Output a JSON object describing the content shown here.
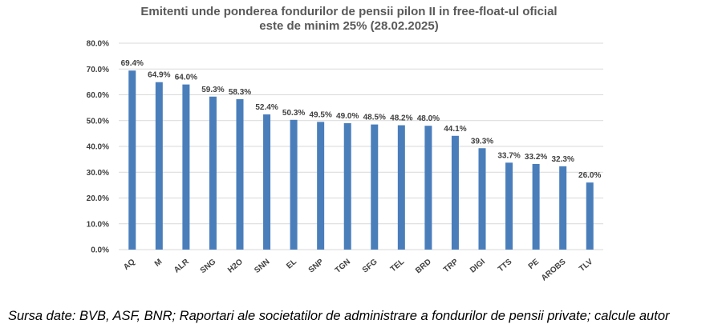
{
  "chart_data": {
    "type": "bar",
    "title_lines": [
      "Emitenti  unde ponderea fondurilor de pensii pilon II in free-float-ul  oficial",
      "este de minim 25% (28.02.2025)"
    ],
    "categories": [
      "AQ",
      "M",
      "ALR",
      "SNG",
      "H2O",
      "SNN",
      "EL",
      "SNP",
      "TGN",
      "SFG",
      "TEL",
      "BRD",
      "TRP",
      "DIGI",
      "TTS",
      "PE",
      "AROBS",
      "TLV"
    ],
    "values": [
      69.4,
      64.9,
      64.0,
      59.3,
      58.3,
      52.4,
      50.3,
      49.5,
      49.0,
      48.5,
      48.2,
      48.0,
      44.1,
      39.3,
      33.7,
      33.2,
      32.3,
      26.0
    ],
    "value_labels": [
      "69.4%",
      "64.9%",
      "64.0%",
      "59.3%",
      "58.3%",
      "52.4%",
      "50.3%",
      "49.5%",
      "49.0%",
      "48.5%",
      "48.2%",
      "48.0%",
      "44.1%",
      "39.3%",
      "33.7%",
      "33.2%",
      "32.3%",
      "26.0%"
    ],
    "y_ticks": [
      0,
      10,
      20,
      30,
      40,
      50,
      60,
      70,
      80
    ],
    "y_tick_labels": [
      "0.0%",
      "10.0%",
      "20.0%",
      "30.0%",
      "40.0%",
      "50.0%",
      "60.0%",
      "70.0%",
      "80.0%"
    ],
    "ylim": [
      0,
      80
    ],
    "grid": true,
    "xlabel": "",
    "ylabel": "",
    "bar_color": "#4a7ebb"
  },
  "source_note": "Sursa date: BVB, ASF, BNR; Raportari ale societatilor de administrare a fondurilor de pensii private; calcule autor"
}
